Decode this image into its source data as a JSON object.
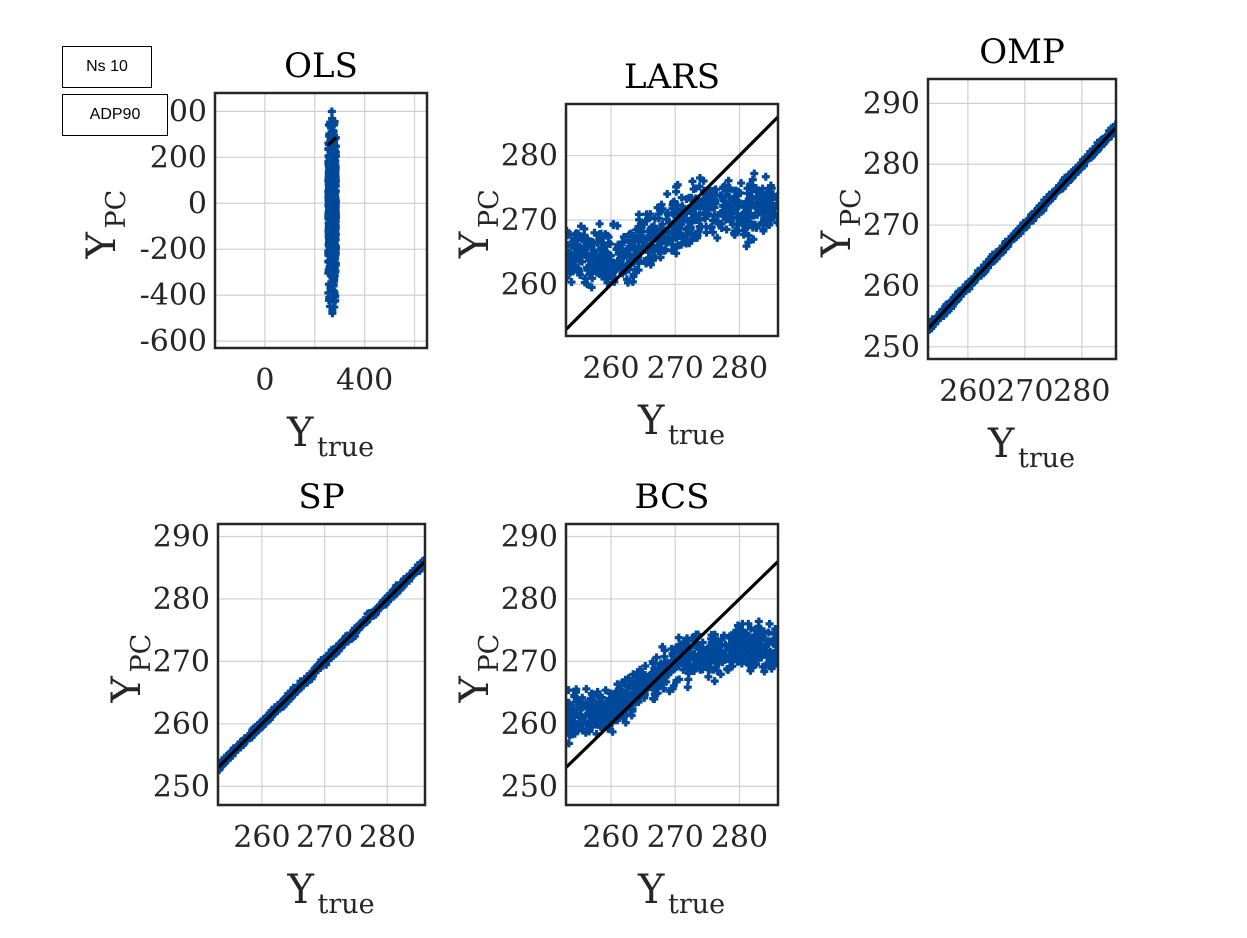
{
  "annotations": {
    "ns": "Ns 10",
    "adp": "ADP90"
  },
  "colors": {
    "points": "#00489a",
    "line": "#000000",
    "grid": "#d0d0d0",
    "axis": "#262626"
  },
  "chart_data": [
    {
      "type": "scatter",
      "title": "OLS",
      "xlabel_main": "Y",
      "xlabel_sub": "true",
      "ylabel_main": "Y",
      "ylabel_sub": "PC",
      "xlim": [
        -200,
        650
      ],
      "ylim": [
        -630,
        480
      ],
      "xticks": [
        0,
        400
      ],
      "xtick_labels": [
        "0",
        "400"
      ],
      "yticks": [
        -600,
        -400,
        -200,
        0,
        200,
        400
      ],
      "ytick_labels": [
        "-600",
        "-400",
        "-200",
        "0",
        "200",
        "400"
      ],
      "grid_x": [
        0,
        200,
        400,
        600
      ],
      "grid_y": [
        -600,
        -400,
        -200,
        0,
        200,
        400
      ],
      "cloud": {
        "xmin": 254,
        "xmax": 285,
        "ymin": -550,
        "ymax": 470,
        "spread": 0
      },
      "reference_line": [
        [
          253,
          253
        ],
        [
          286,
          286
        ]
      ]
    },
    {
      "type": "scatter",
      "title": "LARS",
      "xlabel_main": "Y",
      "xlabel_sub": "true",
      "ylabel_main": "Y",
      "ylabel_sub": "PC",
      "xlim": [
        253,
        286
      ],
      "ylim": [
        252,
        288
      ],
      "xticks": [
        260,
        270,
        280
      ],
      "xtick_labels": [
        "260",
        "270",
        "280"
      ],
      "yticks": [
        260,
        270,
        280
      ],
      "ytick_labels": [
        "260",
        "270",
        "280"
      ],
      "grid_x": [
        260,
        270,
        280
      ],
      "grid_y": [
        260,
        270,
        280
      ],
      "cloud": {
        "center": [
          [
            253,
            265
          ],
          [
            262,
            264
          ],
          [
            268,
            268
          ],
          [
            275,
            272
          ],
          [
            286,
            272
          ]
        ],
        "spread": 7
      },
      "reference_line": [
        [
          253,
          253
        ],
        [
          286,
          286
        ]
      ]
    },
    {
      "type": "scatter",
      "title": "OMP",
      "xlabel_main": "Y",
      "xlabel_sub": "true",
      "ylabel_main": "Y",
      "ylabel_sub": "PC",
      "xlim": [
        253,
        286
      ],
      "ylim": [
        248,
        294
      ],
      "xticks": [
        260,
        270,
        280
      ],
      "xtick_labels": [
        "260",
        "270",
        "280"
      ],
      "yticks": [
        250,
        260,
        270,
        280,
        290
      ],
      "ytick_labels": [
        "250",
        "260",
        "270",
        "280",
        "290"
      ],
      "grid_x": [
        260,
        270,
        280
      ],
      "grid_y": [
        250,
        260,
        270,
        280,
        290
      ],
      "cloud": {
        "center": [
          [
            253,
            253
          ],
          [
            286,
            286
          ]
        ],
        "spread": 0.9
      },
      "reference_line": [
        [
          253,
          253
        ],
        [
          286,
          286
        ]
      ]
    },
    {
      "type": "scatter",
      "title": "SP",
      "xlabel_main": "Y",
      "xlabel_sub": "true",
      "ylabel_main": "Y",
      "ylabel_sub": "PC",
      "xlim": [
        253,
        286
      ],
      "ylim": [
        247,
        292
      ],
      "xticks": [
        260,
        270,
        280
      ],
      "xtick_labels": [
        "260",
        "270",
        "280"
      ],
      "yticks": [
        250,
        260,
        270,
        280,
        290
      ],
      "ytick_labels": [
        "250",
        "260",
        "270",
        "280",
        "290"
      ],
      "grid_x": [
        260,
        270,
        280
      ],
      "grid_y": [
        250,
        260,
        270,
        280,
        290
      ],
      "cloud": {
        "center": [
          [
            253,
            253
          ],
          [
            286,
            286
          ]
        ],
        "spread": 0.9
      },
      "reference_line": [
        [
          253,
          253
        ],
        [
          286,
          286
        ]
      ]
    },
    {
      "type": "scatter",
      "title": "BCS",
      "xlabel_main": "Y",
      "xlabel_sub": "true",
      "ylabel_main": "Y",
      "ylabel_sub": "PC",
      "xlim": [
        253,
        286
      ],
      "ylim": [
        247,
        292
      ],
      "xticks": [
        260,
        270,
        280
      ],
      "xtick_labels": [
        "260",
        "270",
        "280"
      ],
      "yticks": [
        250,
        260,
        270,
        280,
        290
      ],
      "ytick_labels": [
        "250",
        "260",
        "270",
        "280",
        "290"
      ],
      "grid_x": [
        260,
        270,
        280
      ],
      "grid_y": [
        250,
        260,
        270,
        280,
        290
      ],
      "cloud": {
        "center": [
          [
            253,
            261
          ],
          [
            260,
            262
          ],
          [
            265,
            266
          ],
          [
            270,
            270
          ],
          [
            278,
            272
          ],
          [
            286,
            272
          ]
        ],
        "spread": 5
      },
      "reference_line": [
        [
          253,
          253
        ],
        [
          286,
          286
        ]
      ]
    }
  ]
}
